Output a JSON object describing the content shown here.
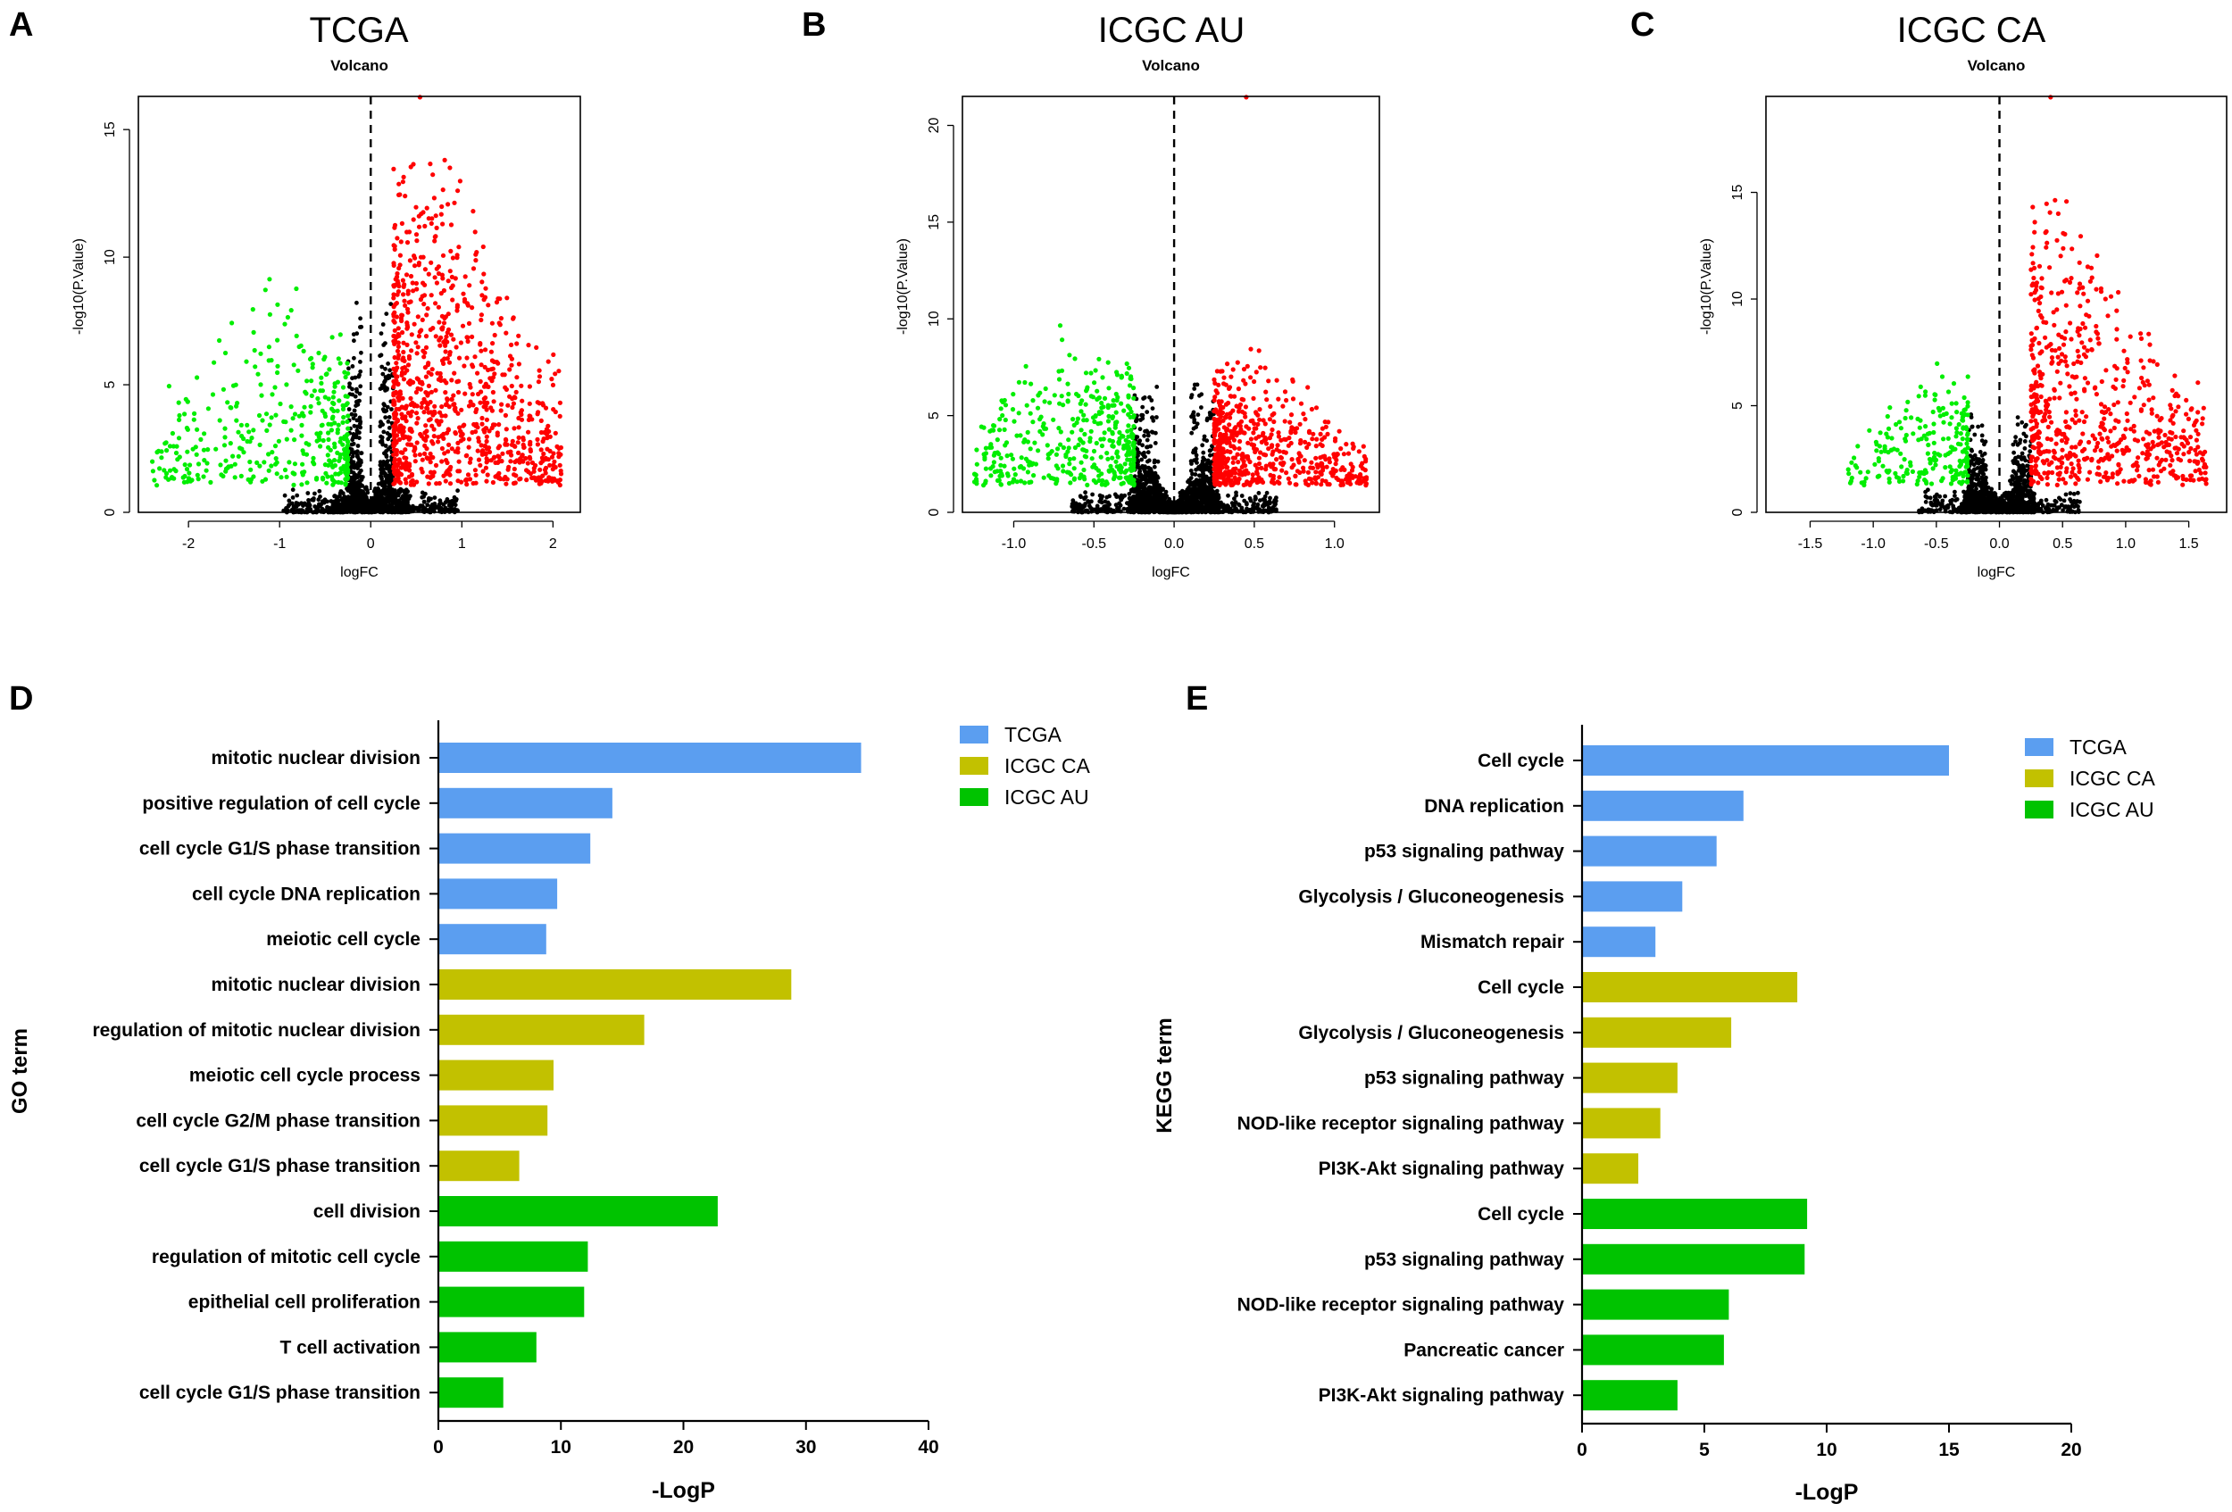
{
  "volcano_legend_colors": {
    "up": "#ff0000",
    "down": "#00ee00",
    "ns": "#000000"
  },
  "chart_data": [
    {
      "panel": "A",
      "type": "scatter",
      "heading": "TCGA",
      "title": "Volcano",
      "xlabel": "logFC",
      "ylabel": "-log10(P.Value)",
      "xlim": [
        -2.55,
        2.3
      ],
      "ylim": [
        0,
        16.3
      ],
      "xticks": [
        -2,
        -1,
        0,
        1,
        2
      ],
      "yticks": [
        0,
        5,
        10,
        15
      ],
      "threshold_x": 0,
      "fc_cutoff": 0.25,
      "seed": 11,
      "groups": [
        {
          "name": "up",
          "color": "#ff0000",
          "count": 950,
          "x_range": [
            0.25,
            2.1
          ],
          "y_peak": 15.6,
          "x_peak": 0.6
        },
        {
          "name": "down",
          "color": "#00ee00",
          "count": 380,
          "x_range": [
            -2.4,
            -0.25
          ],
          "y_peak": 9.7,
          "x_peak": -1.0
        },
        {
          "name": "ns",
          "color": "#000000",
          "count": 1100,
          "x_range": [
            -1.2,
            0.8
          ],
          "y_peak": 11.0
        }
      ]
    },
    {
      "panel": "B",
      "type": "scatter",
      "heading": "ICGC AU",
      "title": "Volcano",
      "xlabel": "logFC",
      "ylabel": "-log10(P.Value)",
      "xlim": [
        -1.32,
        1.28
      ],
      "ylim": [
        0,
        21.5
      ],
      "xticks": [
        -1.0,
        -0.5,
        0.0,
        0.5,
        1.0
      ],
      "yticks": [
        0,
        5,
        10,
        15,
        20
      ],
      "threshold_x": 0,
      "fc_cutoff": 0.25,
      "seed": 23,
      "groups": [
        {
          "name": "up",
          "color": "#ff0000",
          "count": 600,
          "x_range": [
            0.25,
            1.2
          ],
          "y_peak": 9.0,
          "x_peak": 0.5
        },
        {
          "name": "down",
          "color": "#00ee00",
          "count": 420,
          "x_range": [
            -1.25,
            -0.25
          ],
          "y_peak": 10.6,
          "x_peak": -0.6
        },
        {
          "name": "ns",
          "color": "#000000",
          "count": 1300,
          "x_range": [
            -0.75,
            0.8
          ],
          "y_peak": 9.0
        }
      ]
    },
    {
      "panel": "C",
      "type": "scatter",
      "heading": "ICGC CA",
      "title": "Volcano",
      "xlabel": "logFC",
      "ylabel": "-log10(P.Value)",
      "xlim": [
        -1.85,
        1.8
      ],
      "ylim": [
        0,
        19.5
      ],
      "xticks": [
        -1.5,
        -1.0,
        -0.5,
        0.0,
        0.5,
        1.0,
        1.5
      ],
      "yticks": [
        0,
        5,
        10,
        15
      ],
      "threshold_x": 0,
      "fc_cutoff": 0.25,
      "seed": 37,
      "groups": [
        {
          "name": "up",
          "color": "#ff0000",
          "count": 650,
          "x_range": [
            0.25,
            1.65
          ],
          "y_peak": 15.7,
          "x_peak": 0.45
        },
        {
          "name": "down",
          "color": "#00ee00",
          "count": 220,
          "x_range": [
            -1.2,
            -0.25
          ],
          "y_peak": 8.0,
          "x_peak": -0.5
        },
        {
          "name": "ns",
          "color": "#000000",
          "count": 900,
          "x_range": [
            -0.8,
            0.8
          ],
          "y_peak": 6.5
        }
      ]
    },
    {
      "panel": "D",
      "type": "bar",
      "orientation": "horizontal",
      "ylabel": "GO term",
      "xlabel": "-LogP",
      "xlim": [
        0,
        40
      ],
      "xticks": [
        0,
        10,
        20,
        30,
        40
      ],
      "legend": [
        {
          "name": "TCGA",
          "color": "#5b9ef0"
        },
        {
          "name": "ICGC CA",
          "color": "#c2c100"
        },
        {
          "name": "ICGC AU",
          "color": "#00c300"
        }
      ],
      "bars": [
        {
          "label": "mitotic nuclear division",
          "value": 34.5,
          "group": 0
        },
        {
          "label": "positive regulation of cell cycle",
          "value": 14.2,
          "group": 0
        },
        {
          "label": "cell cycle G1/S phase transition",
          "value": 12.4,
          "group": 0
        },
        {
          "label": "cell cycle DNA replication",
          "value": 9.7,
          "group": 0
        },
        {
          "label": "meiotic cell cycle",
          "value": 8.8,
          "group": 0
        },
        {
          "label": "mitotic nuclear division",
          "value": 28.8,
          "group": 1
        },
        {
          "label": "regulation of mitotic nuclear division",
          "value": 16.8,
          "group": 1
        },
        {
          "label": "meiotic cell cycle process",
          "value": 9.4,
          "group": 1
        },
        {
          "label": "cell cycle G2/M phase transition",
          "value": 8.9,
          "group": 1
        },
        {
          "label": "cell cycle G1/S phase transition",
          "value": 6.6,
          "group": 1
        },
        {
          "label": "cell division",
          "value": 22.8,
          "group": 2
        },
        {
          "label": "regulation of mitotic cell cycle",
          "value": 12.2,
          "group": 2
        },
        {
          "label": "epithelial cell proliferation",
          "value": 11.9,
          "group": 2
        },
        {
          "label": "T cell activation",
          "value": 8.0,
          "group": 2
        },
        {
          "label": "cell cycle G1/S phase transition",
          "value": 5.3,
          "group": 2
        }
      ]
    },
    {
      "panel": "E",
      "type": "bar",
      "orientation": "horizontal",
      "ylabel": "KEGG term",
      "xlabel": "-LogP",
      "xlim": [
        0,
        20
      ],
      "xticks": [
        0,
        5,
        10,
        15,
        20
      ],
      "legend": [
        {
          "name": "TCGA",
          "color": "#5b9ef0"
        },
        {
          "name": "ICGC CA",
          "color": "#c2c100"
        },
        {
          "name": "ICGC AU",
          "color": "#00c300"
        }
      ],
      "bars": [
        {
          "label": "Cell cycle",
          "value": 15.0,
          "group": 0
        },
        {
          "label": "DNA replication",
          "value": 6.6,
          "group": 0
        },
        {
          "label": "p53 signaling pathway",
          "value": 5.5,
          "group": 0
        },
        {
          "label": "Glycolysis / Gluconeogenesis",
          "value": 4.1,
          "group": 0
        },
        {
          "label": "Mismatch repair",
          "value": 3.0,
          "group": 0
        },
        {
          "label": "Cell cycle",
          "value": 8.8,
          "group": 1
        },
        {
          "label": "Glycolysis / Gluconeogenesis",
          "value": 6.1,
          "group": 1
        },
        {
          "label": "p53 signaling pathway",
          "value": 3.9,
          "group": 1
        },
        {
          "label": "NOD-like receptor signaling pathway",
          "value": 3.2,
          "group": 1
        },
        {
          "label": "PI3K-Akt signaling pathway",
          "value": 2.3,
          "group": 1
        },
        {
          "label": "Cell cycle",
          "value": 9.2,
          "group": 2
        },
        {
          "label": "p53 signaling pathway",
          "value": 9.1,
          "group": 2
        },
        {
          "label": "NOD-like receptor signaling pathway",
          "value": 6.0,
          "group": 2
        },
        {
          "label": "Pancreatic cancer",
          "value": 5.8,
          "group": 2
        },
        {
          "label": "PI3K-Akt signaling pathway",
          "value": 3.9,
          "group": 2
        }
      ]
    }
  ]
}
